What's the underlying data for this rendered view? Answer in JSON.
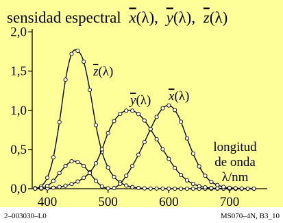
{
  "chart_data": {
    "type": "line",
    "title": "sensidad espectral",
    "title_functions": [
      {
        "letter": "x",
        "arg": "(λ)",
        "sep": ","
      },
      {
        "letter": "y",
        "arg": "(λ)",
        "sep": ","
      },
      {
        "letter": "z",
        "arg": "(λ)",
        "sep": ""
      }
    ],
    "xlabel_lines": [
      "longitud",
      "de onda",
      "λ/nm"
    ],
    "ylabel": "",
    "xlim": [
      380,
      750
    ],
    "ylim": [
      0,
      2.1
    ],
    "x_ticks": [
      400,
      500,
      600,
      700
    ],
    "x_tick_labels": [
      "400",
      "500",
      "600",
      "700"
    ],
    "y_ticks": [
      0,
      0.5,
      1.0,
      1.5,
      2.0
    ],
    "y_tick_labels": [
      "0,0",
      "0,5",
      "1,0",
      "1,5",
      "2,0"
    ],
    "background": "#ffff99",
    "line_color": "#000000",
    "grid": false,
    "series": [
      {
        "name": "z̄(λ)",
        "label_letter": "z",
        "label_arg": "(λ)",
        "x": [
          380,
          390,
          400,
          410,
          420,
          430,
          440,
          450,
          460,
          470,
          480,
          490,
          500,
          510,
          520,
          530,
          540,
          550,
          560,
          570,
          580,
          590,
          600,
          610,
          620,
          630,
          640,
          650,
          660,
          670,
          680,
          690,
          700,
          710,
          720,
          730,
          740
        ],
        "values": [
          0.006,
          0.03,
          0.14,
          0.4,
          0.85,
          1.39,
          1.72,
          1.76,
          1.62,
          1.26,
          0.81,
          0.47,
          0.27,
          0.15,
          0.08,
          0.04,
          0.02,
          0.009,
          0.004,
          0.002,
          0.002,
          0.001,
          0.001,
          0,
          0,
          0,
          0,
          0,
          0,
          0,
          0,
          0,
          0,
          0,
          0,
          0,
          0
        ]
      },
      {
        "name": "ȳ(λ)",
        "label_letter": "y",
        "label_arg": "(λ)",
        "x": [
          380,
          390,
          400,
          410,
          420,
          430,
          440,
          450,
          460,
          470,
          480,
          490,
          500,
          510,
          520,
          530,
          540,
          550,
          560,
          570,
          580,
          590,
          600,
          610,
          620,
          630,
          640,
          650,
          660,
          670,
          680,
          690,
          700,
          710,
          720,
          730,
          740
        ],
        "values": [
          0.0002,
          0.001,
          0.004,
          0.012,
          0.023,
          0.038,
          0.06,
          0.091,
          0.139,
          0.208,
          0.323,
          0.503,
          0.71,
          0.862,
          0.954,
          0.995,
          0.995,
          0.952,
          0.87,
          0.757,
          0.631,
          0.503,
          0.381,
          0.265,
          0.175,
          0.107,
          0.061,
          0.032,
          0.017,
          0.008,
          0.004,
          0.002,
          0.001,
          0.0005,
          0.0002,
          0.0001,
          0.0001
        ]
      },
      {
        "name": "x̄(λ)",
        "label_letter": "x",
        "label_arg": "(λ)",
        "x": [
          380,
          390,
          400,
          410,
          420,
          430,
          440,
          450,
          460,
          470,
          480,
          490,
          500,
          510,
          520,
          530,
          540,
          550,
          560,
          570,
          580,
          590,
          600,
          610,
          620,
          630,
          640,
          650,
          660,
          670,
          680,
          690,
          700,
          710,
          720,
          730,
          740
        ],
        "values": [
          0.001,
          0.007,
          0.036,
          0.1,
          0.2,
          0.29,
          0.35,
          0.34,
          0.29,
          0.2,
          0.1,
          0.03,
          0.005,
          0.009,
          0.063,
          0.166,
          0.29,
          0.433,
          0.595,
          0.762,
          0.916,
          1.026,
          1.062,
          1.003,
          0.854,
          0.642,
          0.448,
          0.284,
          0.165,
          0.087,
          0.047,
          0.023,
          0.011,
          0.006,
          0.003,
          0.001,
          0.001
        ]
      }
    ]
  },
  "footer": {
    "left": "2–003030–L0",
    "right": "MS070–4N, B3_10"
  }
}
